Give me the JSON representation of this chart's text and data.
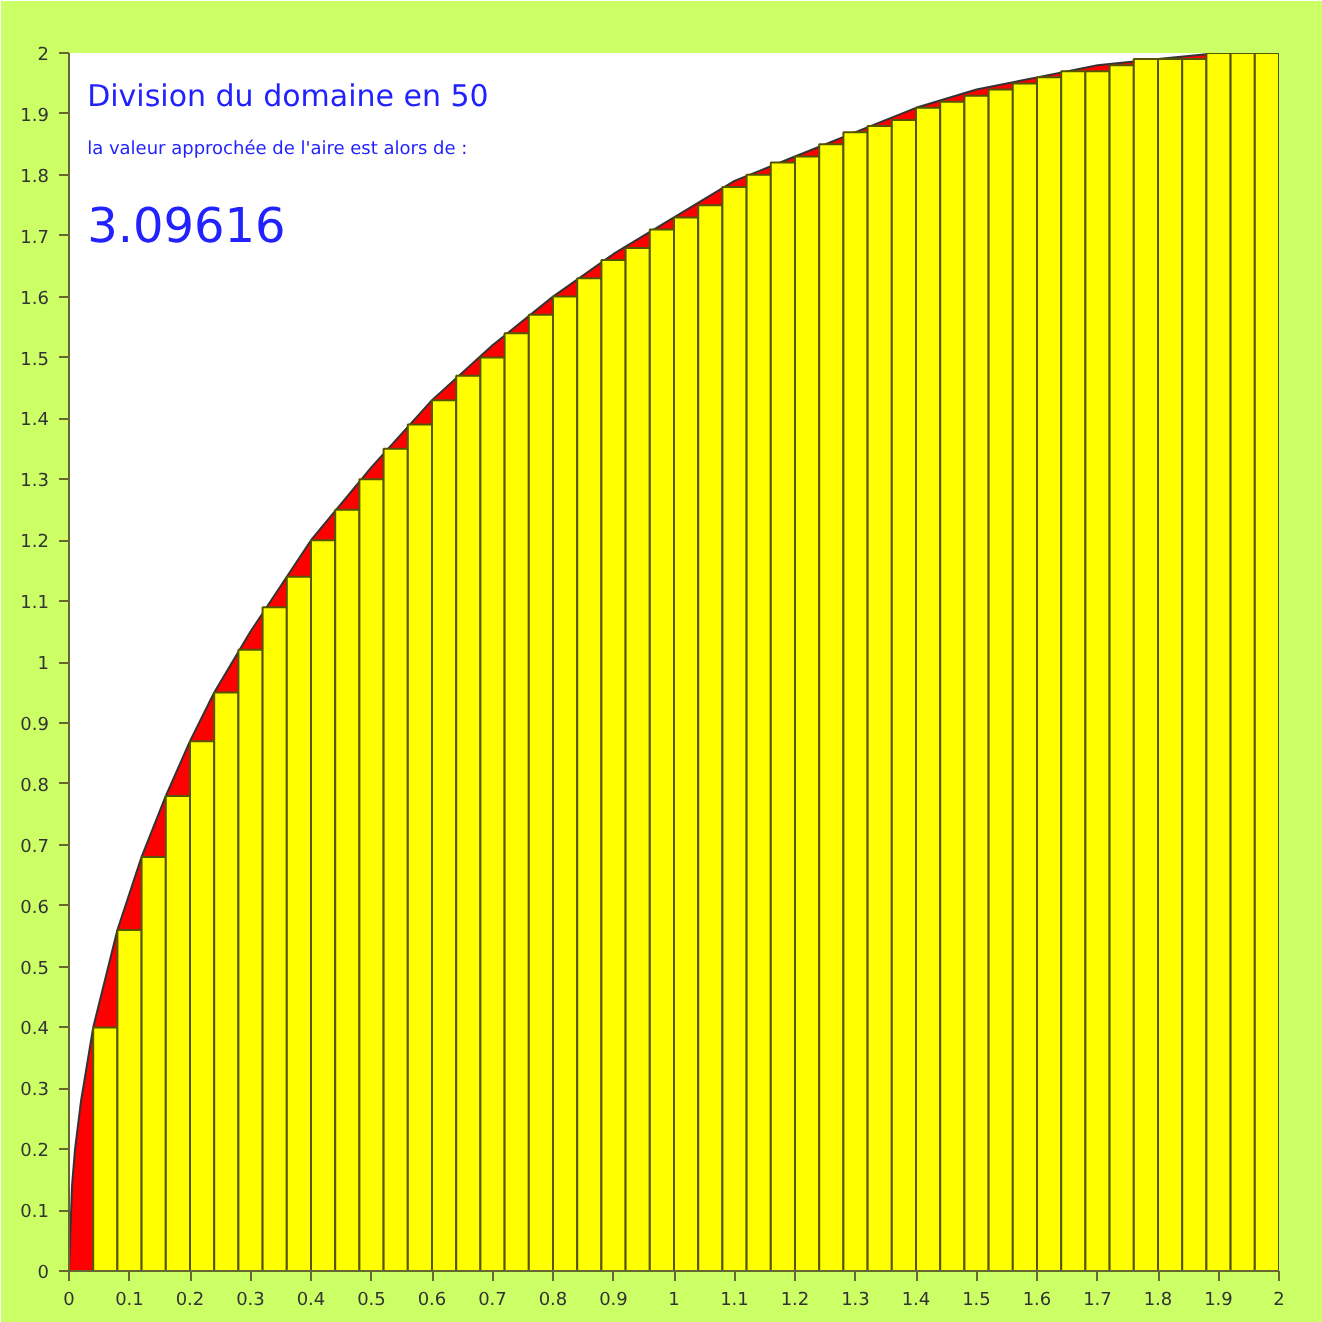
{
  "chart_data": {
    "type": "bar",
    "annotations": [
      "Division du domaine en 50",
      "la valeur approchée de l'aire est alors de :",
      "3.09616"
    ],
    "xlim": [
      0,
      2
    ],
    "ylim": [
      0,
      2
    ],
    "xticks": [
      0,
      0.1,
      0.2,
      0.3,
      0.4,
      0.5,
      0.6,
      0.7,
      0.8,
      0.9,
      1,
      1.1,
      1.2,
      1.3,
      1.4,
      1.5,
      1.6,
      1.7,
      1.8,
      1.9,
      2
    ],
    "yticks": [
      0,
      0.1,
      0.2,
      0.3,
      0.4,
      0.5,
      0.6,
      0.7,
      0.8,
      0.9,
      1,
      1.1,
      1.2,
      1.3,
      1.4,
      1.5,
      1.6,
      1.7,
      1.8,
      1.9,
      2
    ],
    "grid": false,
    "series": [
      {
        "type": "area",
        "color": "#ff0000",
        "x": [
          0,
          0.005,
          0.01,
          0.02,
          0.04,
          0.08,
          0.12,
          0.16,
          0.2,
          0.24,
          0.3,
          0.4,
          0.5,
          0.6,
          0.7,
          0.8,
          0.9,
          1.0,
          1.1,
          1.2,
          1.3,
          1.4,
          1.5,
          1.6,
          1.7,
          1.8,
          1.9,
          2.0
        ],
        "values": [
          0,
          0.14,
          0.2,
          0.28,
          0.4,
          0.56,
          0.68,
          0.78,
          0.87,
          0.95,
          1.05,
          1.2,
          1.32,
          1.43,
          1.52,
          1.6,
          1.67,
          1.73,
          1.79,
          1.83,
          1.87,
          1.91,
          1.94,
          1.96,
          1.98,
          1.99,
          2.0,
          2.0
        ]
      },
      {
        "color": "#ffff00",
        "x": [
          0.02,
          0.06,
          0.1,
          0.14,
          0.18,
          0.22,
          0.26,
          0.3,
          0.34,
          0.38,
          0.42,
          0.46,
          0.5,
          0.54,
          0.58,
          0.62,
          0.66,
          0.7,
          0.74,
          0.78,
          0.82,
          0.86,
          0.9,
          0.94,
          0.98,
          1.02,
          1.06,
          1.1,
          1.14,
          1.18,
          1.22,
          1.26,
          1.3,
          1.34,
          1.38,
          1.42,
          1.46,
          1.5,
          1.54,
          1.58,
          1.62,
          1.66,
          1.7,
          1.74,
          1.78,
          1.82,
          1.86,
          1.9,
          1.94,
          1.98
        ],
        "values": [
          0,
          0.4,
          0.56,
          0.68,
          0.78,
          0.87,
          0.95,
          1.02,
          1.09,
          1.14,
          1.2,
          1.25,
          1.3,
          1.35,
          1.39,
          1.43,
          1.47,
          1.5,
          1.54,
          1.57,
          1.6,
          1.63,
          1.66,
          1.68,
          1.71,
          1.73,
          1.75,
          1.78,
          1.8,
          1.82,
          1.83,
          1.85,
          1.87,
          1.88,
          1.89,
          1.91,
          1.92,
          1.93,
          1.94,
          1.95,
          1.96,
          1.97,
          1.97,
          1.98,
          1.99,
          1.99,
          1.99,
          2.0,
          2.0,
          2.0
        ]
      }
    ]
  }
}
